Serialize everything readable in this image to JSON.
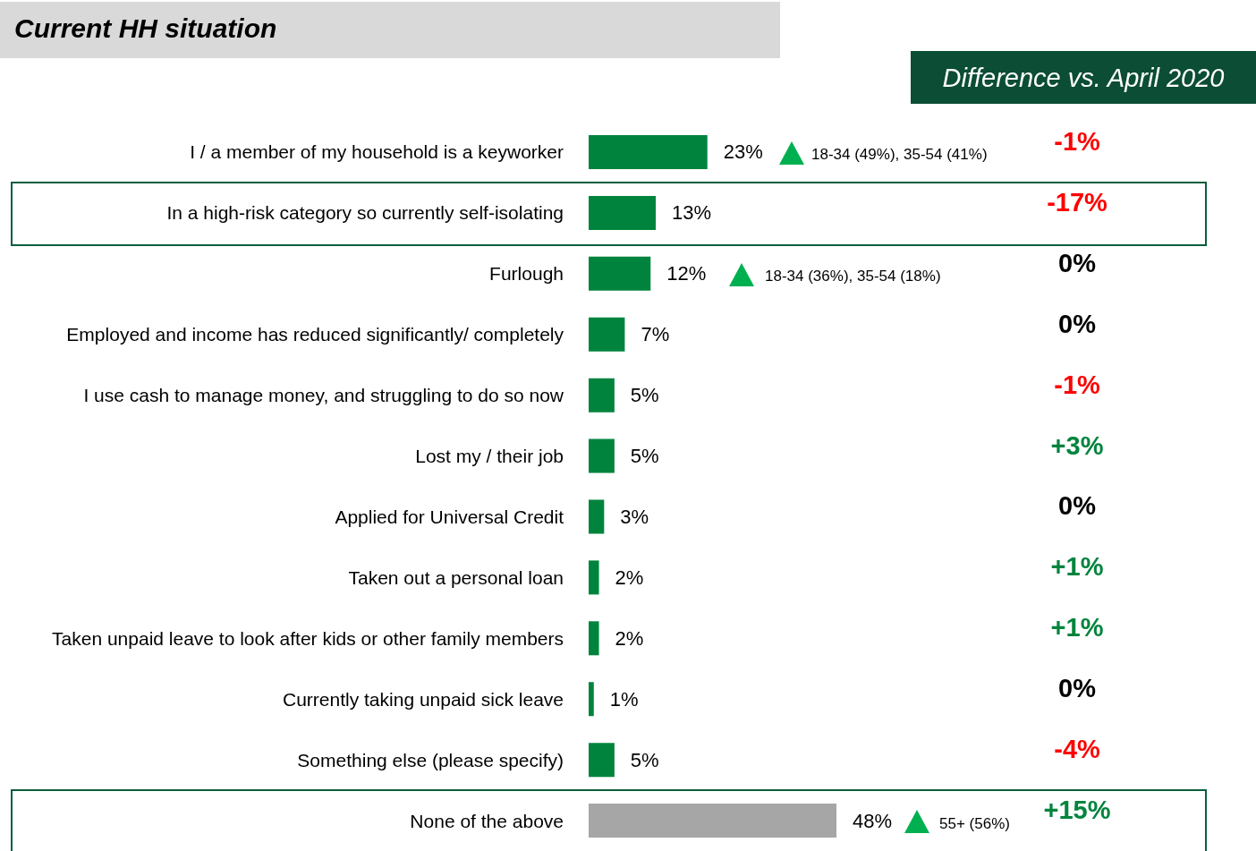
{
  "chart_data": {
    "type": "bar",
    "orientation": "horizontal",
    "title": "Current HH situation",
    "categories": [
      "I / a member of my household is a keyworker",
      "In a high-risk category so currently self-isolating",
      "Furlough",
      "Employed and income has reduced significantly/ completely",
      "I use cash to manage money, and struggling to do so now",
      "Lost my / their job",
      "Applied for Universal Credit",
      "Taken out a personal loan",
      "Taken unpaid leave to look after kids or other family members",
      "Currently taking unpaid sick leave",
      "Something else (please specify)",
      "None of the above"
    ],
    "values": [
      23,
      13,
      12,
      7,
      5,
      5,
      3,
      2,
      2,
      1,
      5,
      48
    ],
    "value_labels": [
      "23%",
      "13%",
      "12%",
      "7%",
      "5%",
      "5%",
      "3%",
      "2%",
      "2%",
      "1%",
      "5%",
      "48%"
    ],
    "colors": [
      "#00843d",
      "#00843d",
      "#00843d",
      "#00843d",
      "#00843d",
      "#00843d",
      "#00843d",
      "#00843d",
      "#00843d",
      "#00843d",
      "#00843d",
      "#a6a6a6"
    ],
    "tick_labels": "y",
    "annotations": [
      "Difference vs. April 2020",
      "18-34 (49%), 35-54 (41%)",
      "18-34 (36%), 35-54 (18%)",
      "55+ (56%)",
      "-1%",
      "-17%",
      "0%",
      "0%",
      "-1%",
      "+3%",
      "0%",
      "+1%",
      "+1%",
      "0%",
      "-4%",
      "+15%"
    ]
  }
}
